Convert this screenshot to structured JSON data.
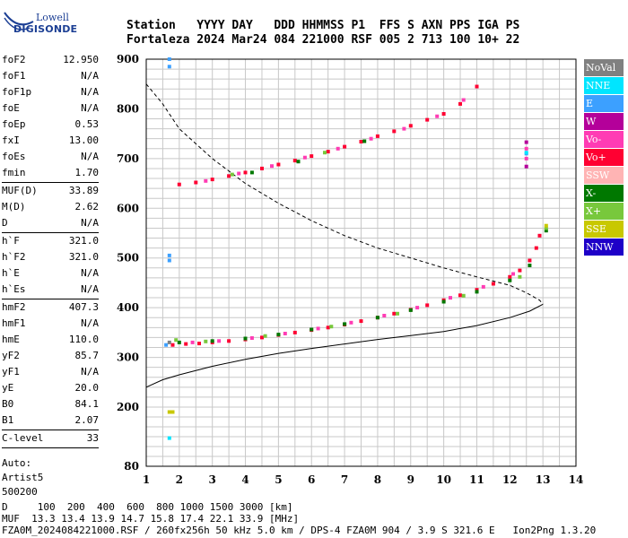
{
  "logo": {
    "line1": "Lowell",
    "line2": "DIGISONDE"
  },
  "header": {
    "line1": "Station   YYYY DAY   DDD HHMMSS P1  FFS S AXN PPS IGA PS",
    "line2": "Fortaleza 2024 Mar24 084 221000 RSF 005 2 713 100 10+ 22"
  },
  "params": {
    "group1": [
      {
        "k": "foF2",
        "v": "12.950"
      },
      {
        "k": "foF1",
        "v": "N/A"
      },
      {
        "k": "foF1p",
        "v": "N/A"
      },
      {
        "k": "foE",
        "v": "N/A"
      },
      {
        "k": "foEp",
        "v": "0.53"
      },
      {
        "k": "fxI",
        "v": "13.00"
      },
      {
        "k": "foEs",
        "v": "N/A"
      },
      {
        "k": "fmin",
        "v": "1.70"
      }
    ],
    "group2": [
      {
        "k": "MUF(D)",
        "v": "33.89"
      },
      {
        "k": "M(D)",
        "v": "2.62"
      },
      {
        "k": "D",
        "v": "N/A"
      }
    ],
    "group3": [
      {
        "k": "h`F",
        "v": "321.0"
      },
      {
        "k": "h`F2",
        "v": "321.0"
      },
      {
        "k": "h`E",
        "v": "N/A"
      },
      {
        "k": "h`Es",
        "v": "N/A"
      }
    ],
    "group4": [
      {
        "k": "hmF2",
        "v": "407.3"
      },
      {
        "k": "hmF1",
        "v": "N/A"
      },
      {
        "k": "hmE",
        "v": "110.0"
      },
      {
        "k": "yF2",
        "v": "85.7"
      },
      {
        "k": "yF1",
        "v": "N/A"
      },
      {
        "k": "yE",
        "v": "20.0"
      },
      {
        "k": "B0",
        "v": "84.1"
      },
      {
        "k": "B1",
        "v": "2.07"
      }
    ],
    "group5": [
      {
        "k": "C-level",
        "v": "33"
      }
    ],
    "autoscaling": [
      "Auto:",
      "Artist5",
      "500200"
    ]
  },
  "legend": [
    {
      "label": "NoVal",
      "color": "#808080"
    },
    {
      "label": "NNE",
      "color": "#00e5ff"
    },
    {
      "label": "E",
      "color": "#3ca0ff"
    },
    {
      "label": "W",
      "color": "#b4009a"
    },
    {
      "label": "Vo-",
      "color": "#ff3cb4"
    },
    {
      "label": "Vo+",
      "color": "#ff0032"
    },
    {
      "label": "SSW",
      "color": "#ffb4b4"
    },
    {
      "label": "X-",
      "color": "#007800"
    },
    {
      "label": "X+",
      "color": "#78c83c"
    },
    {
      "label": "SSE",
      "color": "#c8c800"
    },
    {
      "label": "NNW",
      "color": "#1e00c8"
    }
  ],
  "footer": {
    "line1": "D     100  200  400  600  800 1000 1500 3000 [km]",
    "line2": "MUF  13.3 13.4 13.9 14.7 15.8 17.4 22.1 33.9 [MHz]",
    "line3": "FZA0M_2024084221000.RSF / 260fx256h 50 kHz 5.0 km / DPS-4 FZA0M 904 / 3.9 S 321.6 E   Ion2Png 1.3.20"
  },
  "chart_data": {
    "type": "scatter",
    "xlim": [
      1,
      14
    ],
    "ylim": [
      80,
      900
    ],
    "x_ticks": [
      1,
      2,
      3,
      4,
      5,
      6,
      7,
      8,
      9,
      10,
      11,
      12,
      13,
      14
    ],
    "y_ticks": [
      80,
      200,
      300,
      400,
      500,
      600,
      700,
      800,
      900
    ],
    "grid": true,
    "series": [
      {
        "name": "Vo+",
        "color": "#ff0032",
        "points": [
          [
            1.8,
            325
          ],
          [
            2.2,
            327
          ],
          [
            2.6,
            328
          ],
          [
            3.0,
            330
          ],
          [
            3.5,
            333
          ],
          [
            4.0,
            336
          ],
          [
            4.5,
            340
          ],
          [
            5.0,
            345
          ],
          [
            5.5,
            350
          ],
          [
            6.0,
            355
          ],
          [
            6.5,
            360
          ],
          [
            7.0,
            366
          ],
          [
            7.5,
            373
          ],
          [
            8.0,
            380
          ],
          [
            8.5,
            388
          ],
          [
            9.0,
            396
          ],
          [
            9.5,
            405
          ],
          [
            10.0,
            415
          ],
          [
            10.5,
            425
          ],
          [
            11.0,
            436
          ],
          [
            11.5,
            448
          ],
          [
            12.0,
            462
          ],
          [
            12.3,
            475
          ],
          [
            12.6,
            495
          ],
          [
            12.8,
            520
          ],
          [
            12.9,
            545
          ],
          [
            2.0,
            648
          ],
          [
            2.5,
            652
          ],
          [
            3.0,
            658
          ],
          [
            3.5,
            665
          ],
          [
            4.0,
            672
          ],
          [
            4.5,
            680
          ],
          [
            5.0,
            688
          ],
          [
            5.5,
            696
          ],
          [
            6.0,
            705
          ],
          [
            6.5,
            714
          ],
          [
            7.0,
            724
          ],
          [
            7.5,
            734
          ],
          [
            8.0,
            745
          ],
          [
            8.5,
            755
          ],
          [
            9.0,
            766
          ],
          [
            9.5,
            778
          ],
          [
            10.0,
            790
          ],
          [
            10.5,
            810
          ],
          [
            11.0,
            845
          ]
        ]
      },
      {
        "name": "Vo-",
        "color": "#ff3cb4",
        "points": [
          [
            2.4,
            330
          ],
          [
            3.2,
            333
          ],
          [
            4.2,
            339
          ],
          [
            5.2,
            348
          ],
          [
            6.2,
            358
          ],
          [
            7.2,
            370
          ],
          [
            8.2,
            384
          ],
          [
            9.2,
            400
          ],
          [
            10.2,
            420
          ],
          [
            11.2,
            442
          ],
          [
            12.1,
            468
          ],
          [
            12.5,
            700
          ],
          [
            12.5,
            720
          ],
          [
            2.8,
            655
          ],
          [
            3.8,
            670
          ],
          [
            4.8,
            685
          ],
          [
            5.8,
            702
          ],
          [
            6.8,
            720
          ],
          [
            7.8,
            740
          ],
          [
            8.8,
            760
          ],
          [
            9.8,
            785
          ],
          [
            10.6,
            818
          ]
        ]
      },
      {
        "name": "X-",
        "color": "#007800",
        "points": [
          [
            2.0,
            330
          ],
          [
            3.0,
            333
          ],
          [
            4.0,
            338
          ],
          [
            5.0,
            346
          ],
          [
            6.0,
            356
          ],
          [
            7.0,
            367
          ],
          [
            8.0,
            380
          ],
          [
            9.0,
            395
          ],
          [
            10.0,
            412
          ],
          [
            11.0,
            432
          ],
          [
            12.0,
            455
          ],
          [
            12.6,
            485
          ],
          [
            13.1,
            555
          ],
          [
            4.2,
            672
          ],
          [
            5.6,
            694
          ],
          [
            7.6,
            735
          ]
        ]
      },
      {
        "name": "X+",
        "color": "#78c83c",
        "points": [
          [
            1.9,
            335
          ],
          [
            2.8,
            332
          ],
          [
            4.6,
            343
          ],
          [
            6.6,
            362
          ],
          [
            8.6,
            388
          ],
          [
            10.6,
            424
          ],
          [
            12.3,
            462
          ],
          [
            13.1,
            560
          ],
          [
            3.6,
            668
          ],
          [
            6.4,
            712
          ]
        ]
      },
      {
        "name": "SSE",
        "color": "#c8c800",
        "points": [
          [
            1.7,
            190
          ],
          [
            1.8,
            190
          ],
          [
            13.1,
            565
          ]
        ]
      },
      {
        "name": "E",
        "color": "#3ca0ff",
        "points": [
          [
            1.7,
            900
          ],
          [
            1.7,
            885
          ],
          [
            1.7,
            505
          ],
          [
            1.7,
            495
          ],
          [
            1.6,
            325
          ],
          [
            12.5,
            710
          ]
        ]
      },
      {
        "name": "NNE",
        "color": "#00e5ff",
        "points": [
          [
            1.7,
            137
          ],
          [
            12.5,
            712
          ]
        ]
      },
      {
        "name": "W",
        "color": "#b4009a",
        "points": [
          [
            12.5,
            733
          ],
          [
            12.5,
            684
          ]
        ]
      },
      {
        "name": "NoVal",
        "color": "#808080",
        "points": [
          [
            1.7,
            330
          ]
        ]
      }
    ],
    "profile_curve": {
      "style": "solid",
      "points": [
        [
          1.0,
          240
        ],
        [
          1.5,
          255
        ],
        [
          2.0,
          265
        ],
        [
          3.0,
          282
        ],
        [
          4.0,
          296
        ],
        [
          5.0,
          308
        ],
        [
          6.0,
          318
        ],
        [
          7.0,
          327
        ],
        [
          8.0,
          336
        ],
        [
          9.0,
          344
        ],
        [
          10.0,
          352
        ],
        [
          11.0,
          364
        ],
        [
          12.0,
          380
        ],
        [
          12.6,
          393
        ],
        [
          13.0,
          407
        ]
      ]
    },
    "muf_curve": {
      "style": "dashed",
      "points": [
        [
          1.0,
          850
        ],
        [
          1.5,
          810
        ],
        [
          2.0,
          760
        ],
        [
          3.0,
          700
        ],
        [
          4.0,
          650
        ],
        [
          5.0,
          610
        ],
        [
          6.0,
          575
        ],
        [
          7.0,
          545
        ],
        [
          8.0,
          520
        ],
        [
          9.0,
          500
        ],
        [
          10.0,
          480
        ],
        [
          11.0,
          462
        ],
        [
          12.0,
          445
        ],
        [
          12.5,
          430
        ],
        [
          12.9,
          415
        ],
        [
          13.0,
          407
        ]
      ]
    }
  }
}
